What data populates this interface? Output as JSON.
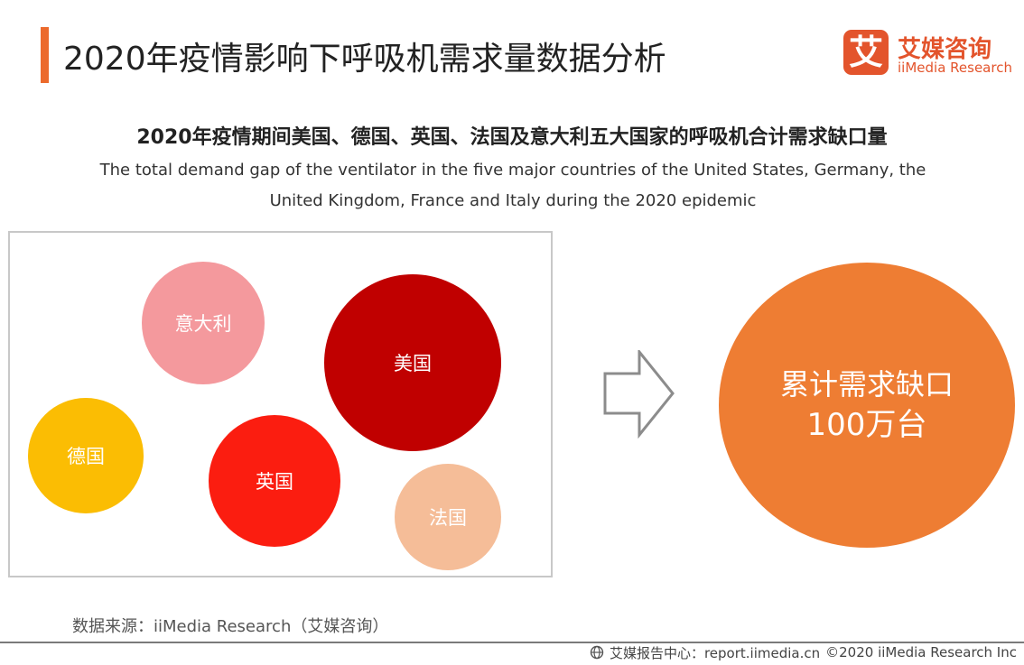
{
  "header": {
    "title": "2020年疫情影响下呼吸机需求量数据分析",
    "logo": {
      "mark_char": "艾",
      "cn": "艾媒咨询",
      "en": "iiMedia Research"
    }
  },
  "subtitle": {
    "cn": "2020年疫情期间美国、德国、英国、法国及意大利五大国家的呼吸机合计需求缺口量",
    "en": "The total demand gap of the ventilator in the five major countries of the United States, Germany, the United Kingdom, France and Italy during the 2020 epidemic"
  },
  "countries": [
    {
      "key": "italy",
      "label": "意大利",
      "color": "#f4999d"
    },
    {
      "key": "usa",
      "label": "美国",
      "color": "#c00000"
    },
    {
      "key": "germany",
      "label": "德国",
      "color": "#fbbd03"
    },
    {
      "key": "uk",
      "label": "英国",
      "color": "#fb1d10"
    },
    {
      "key": "france",
      "label": "法国",
      "color": "#f5bd98"
    }
  ],
  "total": {
    "label": "累计需求缺口",
    "value": "100万台",
    "color": "#ee7d33"
  },
  "source": "数据来源：iiMedia Research（艾媒咨询）",
  "footer": {
    "site": "艾媒报告中心：report.iimedia.cn",
    "copyright": "©2020  iiMedia Research  Inc"
  },
  "colors": {
    "accent": "#ec6a2c",
    "brand": "#e3542c"
  }
}
